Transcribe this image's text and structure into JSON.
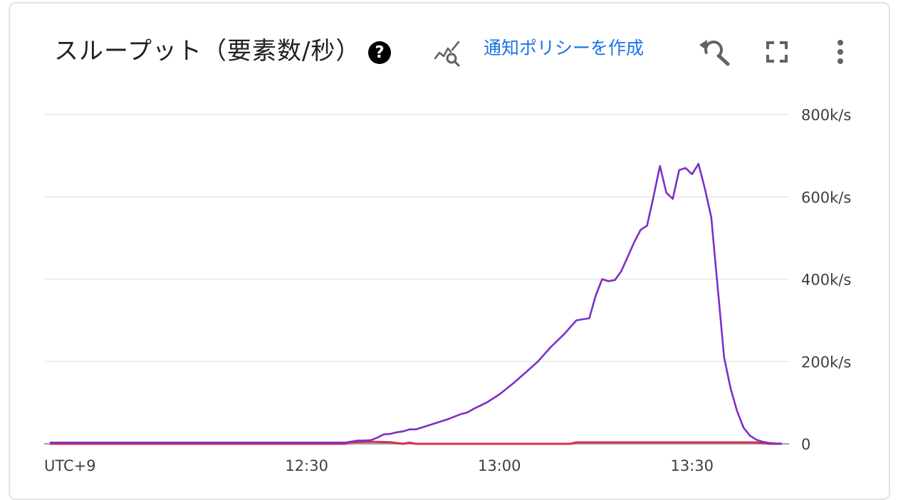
{
  "header": {
    "title": "スループット（要素数/秒）",
    "help_icon": "help-circle-icon",
    "alert_icon": "chart-alert-icon",
    "alert_link_label": "通知ポリシーを作成",
    "reset_zoom_icon": "reset-zoom-icon",
    "fullscreen_icon": "fullscreen-icon",
    "more_icon": "more-vert-icon"
  },
  "colors": {
    "series_primary": "#7b2fc9",
    "series_secondary": "#d6304f",
    "gridline": "#e8e8e8",
    "link": "#1a73e8"
  },
  "chart_data": {
    "type": "line",
    "title": "スループット（要素数/秒）",
    "xlabel": "",
    "ylabel": "",
    "timezone_label": "UTC+9",
    "x_tick_labels": [
      "12:30",
      "13:00",
      "13:30"
    ],
    "y_tick_labels": [
      "0",
      "200k/s",
      "400k/s",
      "600k/s",
      "800k/s"
    ],
    "y_ticks": [
      0,
      200000,
      400000,
      600000,
      800000
    ],
    "ylim": [
      0,
      800000
    ],
    "xlim": [
      "11:50",
      "13:44"
    ],
    "grid": true,
    "y_axis_side": "right",
    "series": [
      {
        "color": "#7b2fc9",
        "x": [
          "11:50",
          "12:00",
          "12:10",
          "12:20",
          "12:30",
          "12:36",
          "12:38",
          "12:39",
          "12:40",
          "12:41",
          "12:42",
          "12:43",
          "12:44",
          "12:45",
          "12:46",
          "12:47",
          "12:48",
          "12:50",
          "12:52",
          "12:54",
          "12:55",
          "12:56",
          "12:58",
          "13:00",
          "13:02",
          "13:04",
          "13:06",
          "13:08",
          "13:10",
          "13:12",
          "13:14",
          "13:15",
          "13:16",
          "13:17",
          "13:18",
          "13:19",
          "13:20",
          "13:21",
          "13:22",
          "13:23",
          "13:24",
          "13:25",
          "13:26",
          "13:27",
          "13:28",
          "13:29",
          "13:30",
          "13:31",
          "13:32",
          "13:33",
          "13:34",
          "13:35",
          "13:36",
          "13:37",
          "13:38",
          "13:39",
          "13:40",
          "13:41",
          "13:42",
          "13:43",
          "13:44"
        ],
        "values": [
          3000,
          3000,
          3000,
          3000,
          3000,
          3000,
          8000,
          8000,
          9000,
          15000,
          23000,
          24000,
          28000,
          30000,
          35000,
          35000,
          40000,
          50000,
          60000,
          72000,
          76000,
          85000,
          100000,
          120000,
          145000,
          172000,
          200000,
          235000,
          265000,
          300000,
          305000,
          360000,
          400000,
          395000,
          398000,
          420000,
          455000,
          490000,
          520000,
          530000,
          600000,
          675000,
          610000,
          595000,
          665000,
          670000,
          655000,
          680000,
          620000,
          550000,
          380000,
          210000,
          135000,
          80000,
          40000,
          20000,
          10000,
          5000,
          2000,
          1000,
          500
        ]
      },
      {
        "color": "#d6304f",
        "x": [
          "11:50",
          "12:00",
          "12:10",
          "12:20",
          "12:30",
          "12:36",
          "12:37",
          "12:40",
          "12:43",
          "12:45",
          "12:46",
          "12:47",
          "13:00",
          "13:11",
          "13:12",
          "13:20",
          "13:30",
          "13:40",
          "13:41",
          "13:42",
          "13:44"
        ],
        "values": [
          0,
          0,
          0,
          0,
          0,
          0,
          4000,
          5000,
          4000,
          0,
          3000,
          0,
          0,
          0,
          3500,
          3500,
          3500,
          3500,
          2000,
          0,
          0
        ]
      }
    ]
  }
}
